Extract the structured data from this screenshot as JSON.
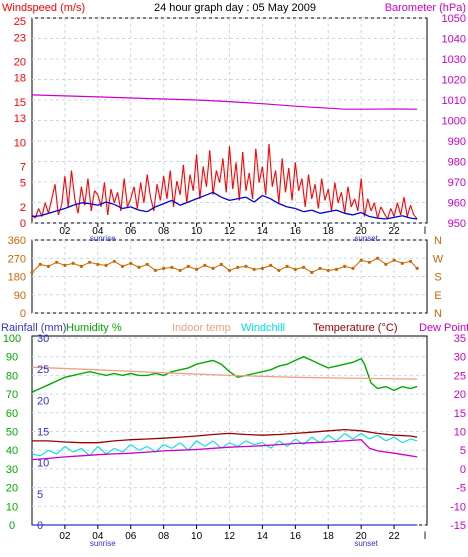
{
  "header": {
    "title": "24 hour graph day : 05 May 2009",
    "left_label": "Windspeed (m/s)",
    "right_label": "Barometer (hPa)"
  },
  "x_axis": {
    "ticks": [
      "02",
      "04",
      "06",
      "08",
      "10",
      "12",
      "14",
      "16",
      "18",
      "20",
      "22"
    ],
    "end_tick": "l",
    "sunrise_label": "sunrise",
    "sunset_label": "sunset",
    "sunrise_hour": 4.3,
    "sunset_hour": 20.3
  },
  "colors": {
    "windspeed": "#ff0000",
    "wind_avg": "#0000cc",
    "barometer": "#cc00cc",
    "wind_dir": "#cc6600",
    "rainfall": "#3333cc",
    "humidity": "#00aa00",
    "indoor_temp": "#f0a080",
    "windchill": "#00e0e0",
    "temperature": "#990000",
    "dewpoint": "#cc00cc",
    "text_dark": "#000000",
    "left_text": "#cc6600",
    "right_text": "#cc00cc",
    "frame": "#000000",
    "grid": "#c8d8ec"
  },
  "chart_data": [
    {
      "type": "line",
      "name": "wind-barometer-chart",
      "title": "24 hour graph day : 05 May 2009",
      "xlim": [
        0,
        24
      ],
      "left_axis": {
        "label": "Windspeed (m/s)",
        "ticks": [
          0,
          2,
          5,
          7,
          10,
          13,
          15,
          18,
          20,
          23,
          25
        ],
        "range": [
          0,
          25.4
        ]
      },
      "right_axis": {
        "label": "Barometer (hPa)",
        "ticks": [
          950,
          960,
          970,
          980,
          990,
          1000,
          1010,
          1020,
          1030,
          1040,
          1050
        ],
        "range": [
          950,
          1050
        ]
      },
      "series": [
        {
          "name": "Windspeed",
          "axis": "left",
          "x": [
            0,
            0.2,
            0.4,
            0.6,
            0.8,
            1,
            1.2,
            1.4,
            1.6,
            1.8,
            2,
            2.2,
            2.4,
            2.6,
            2.8,
            3,
            3.2,
            3.4,
            3.6,
            3.8,
            4,
            4.2,
            4.4,
            4.6,
            4.8,
            5,
            5.2,
            5.4,
            5.6,
            5.8,
            6,
            6.2,
            6.4,
            6.6,
            6.8,
            7,
            7.2,
            7.4,
            7.6,
            7.8,
            8,
            8.2,
            8.4,
            8.6,
            8.8,
            9,
            9.2,
            9.4,
            9.6,
            9.8,
            10,
            10.2,
            10.4,
            10.6,
            10.8,
            11,
            11.2,
            11.4,
            11.6,
            11.8,
            12,
            12.2,
            12.4,
            12.6,
            12.8,
            13,
            13.2,
            13.4,
            13.6,
            13.8,
            14,
            14.2,
            14.4,
            14.6,
            14.8,
            15,
            15.2,
            15.4,
            15.6,
            15.8,
            16,
            16.2,
            16.4,
            16.6,
            16.8,
            17,
            17.2,
            17.4,
            17.6,
            17.8,
            18,
            18.2,
            18.4,
            18.6,
            18.8,
            19,
            19.2,
            19.4,
            19.6,
            19.8,
            20,
            20.2,
            20.4,
            20.6,
            20.8,
            21,
            21.2,
            21.4,
            21.6,
            21.8,
            22,
            22.2,
            22.4,
            22.6,
            22.8,
            23,
            23.2,
            23.4
          ],
          "values": [
            1.0,
            0.6,
            1.8,
            0.8,
            2.5,
            1.2,
            3.0,
            4.8,
            1.0,
            2.2,
            5.8,
            2.0,
            6.5,
            3.0,
            1.2,
            4.5,
            2.2,
            5.5,
            1.5,
            4.0,
            3.5,
            2.0,
            5.0,
            1.0,
            4.2,
            2.5,
            3.8,
            1.5,
            5.5,
            2.0,
            3.0,
            4.5,
            1.8,
            5.0,
            2.5,
            6.0,
            3.2,
            1.5,
            4.8,
            2.8,
            5.8,
            3.0,
            6.5,
            2.0,
            5.2,
            3.5,
            7.2,
            2.5,
            6.0,
            4.0,
            8.5,
            3.0,
            7.0,
            4.5,
            9.0,
            3.5,
            6.5,
            5.0,
            8.0,
            3.8,
            9.5,
            4.2,
            7.5,
            2.8,
            8.8,
            4.0,
            6.2,
            3.0,
            9.2,
            5.0,
            7.0,
            3.5,
            9.8,
            4.5,
            6.5,
            2.5,
            8.0,
            3.8,
            6.8,
            2.8,
            7.5,
            4.0,
            5.5,
            2.0,
            6.0,
            3.0,
            4.8,
            1.8,
            5.5,
            2.8,
            4.2,
            1.5,
            5.0,
            2.5,
            3.8,
            1.2,
            4.5,
            2.0,
            3.0,
            1.5,
            5.5,
            0.8,
            3.0,
            1.5,
            2.5,
            0.6,
            2.0,
            1.2,
            0.5,
            1.8,
            0.8,
            2.5,
            1.0,
            3.2,
            0.8,
            2.2,
            1.0,
            0.5
          ],
          "color_ref": "windspeed"
        },
        {
          "name": "Average wind",
          "axis": "left",
          "x": [
            0,
            0.5,
            1,
            1.5,
            2,
            2.5,
            3,
            3.5,
            4,
            4.5,
            5,
            5.5,
            6,
            6.5,
            7,
            7.5,
            8,
            8.5,
            9,
            9.5,
            10,
            10.5,
            11,
            11.5,
            12,
            12.5,
            13,
            13.5,
            14,
            14.5,
            15,
            15.5,
            16,
            16.5,
            17,
            17.5,
            18,
            18.5,
            19,
            19.5,
            20,
            20.5,
            21,
            21.5,
            22,
            22.5,
            23,
            23.4
          ],
          "values": [
            0.8,
            0.9,
            1.2,
            1.5,
            1.8,
            2.2,
            2.5,
            2.4,
            2.2,
            2.6,
            2.3,
            1.8,
            2.0,
            1.6,
            1.4,
            2.0,
            2.4,
            2.8,
            2.2,
            2.6,
            3.0,
            3.4,
            3.8,
            3.2,
            2.8,
            3.0,
            3.2,
            2.6,
            3.4,
            3.0,
            2.4,
            2.0,
            1.8,
            1.4,
            1.6,
            1.2,
            1.4,
            1.6,
            1.2,
            1.0,
            1.3,
            0.8,
            0.6,
            0.5,
            0.7,
            0.9,
            0.6,
            0.5
          ],
          "color_ref": "wind_avg"
        },
        {
          "name": "Barometer",
          "axis": "right",
          "x": [
            0,
            2,
            4,
            6,
            8,
            10,
            12,
            14,
            16,
            18,
            19,
            20,
            22,
            23.4
          ],
          "values": [
            1012.5,
            1012,
            1011.5,
            1011,
            1010.5,
            1010,
            1009.2,
            1008.2,
            1007,
            1006,
            1005.5,
            1005.5,
            1005.6,
            1005.5
          ],
          "color_ref": "barometer"
        }
      ]
    },
    {
      "type": "scatter",
      "name": "wind-direction-chart",
      "xlim": [
        0,
        24
      ],
      "left_axis": {
        "ticks": [
          0,
          90,
          180,
          270,
          360
        ],
        "range": [
          0,
          360
        ]
      },
      "right_axis": {
        "ticks": [
          "N",
          "W",
          "S",
          "E",
          "N"
        ]
      },
      "series": [
        {
          "name": "Wind direction",
          "x": [
            0,
            0.5,
            1,
            1.5,
            2,
            2.5,
            3,
            3.5,
            4,
            4.5,
            5,
            5.5,
            6,
            6.5,
            7,
            7.5,
            8,
            8.5,
            9,
            9.5,
            10,
            10.5,
            11,
            11.5,
            12,
            12.5,
            13,
            13.5,
            14,
            14.5,
            15,
            15.5,
            16,
            16.5,
            17,
            17.5,
            18,
            18.5,
            19,
            19.5,
            20,
            20.5,
            21,
            21.5,
            22,
            22.5,
            23,
            23.4
          ],
          "values": [
            200,
            240,
            230,
            250,
            235,
            245,
            230,
            250,
            240,
            235,
            255,
            230,
            245,
            225,
            240,
            210,
            220,
            225,
            210,
            230,
            215,
            235,
            220,
            240,
            210,
            225,
            230,
            215,
            220,
            235,
            210,
            230,
            215,
            225,
            200,
            220,
            210,
            215,
            230,
            220,
            260,
            250,
            270,
            240,
            260,
            245,
            255,
            220
          ],
          "color_ref": "wind_dir"
        }
      ]
    },
    {
      "type": "line",
      "name": "temp-humidity-chart",
      "xlim": [
        0,
        24
      ],
      "legend": [
        "Rainfall (mm)",
        "Humidity %",
        "Indoor temp",
        "Windchill",
        "Temperature (°C)",
        "Dew Point"
      ],
      "axes": {
        "rainfall": {
          "ticks": [
            "0",
            "5",
            "10",
            "15",
            "20",
            "25",
            "30"
          ],
          "range": [
            0,
            30
          ]
        },
        "humidity": {
          "ticks": [
            "0",
            "10",
            "20",
            "30",
            "40",
            "50",
            "60",
            "70",
            "80",
            "90",
            "100"
          ],
          "range": [
            0,
            100
          ]
        },
        "temperature": {
          "ticks": [
            "-15",
            "-10",
            "-5",
            "0",
            "5",
            "10",
            "15",
            "20",
            "25",
            "30",
            "35"
          ],
          "range": [
            -15,
            35
          ]
        }
      },
      "series": [
        {
          "name": "Humidity %",
          "axis": "humidity",
          "x": [
            0,
            0.5,
            1,
            1.5,
            2,
            2.5,
            3,
            3.5,
            4,
            4.5,
            5,
            5.5,
            6,
            6.5,
            7,
            7.5,
            8,
            8.5,
            9,
            9.5,
            10,
            10.5,
            11,
            11.5,
            12,
            12.5,
            13,
            13.5,
            14,
            14.5,
            15,
            15.5,
            16,
            16.5,
            17,
            17.5,
            18,
            18.5,
            19,
            19.5,
            20,
            20.2,
            20.6,
            21,
            21.5,
            22,
            22.5,
            23,
            23.4
          ],
          "values": [
            71,
            73,
            75,
            77,
            79,
            80,
            81,
            82,
            81,
            80,
            81,
            80,
            81,
            80,
            80,
            81,
            80,
            82,
            83,
            84,
            86,
            87,
            88,
            86,
            82,
            79,
            80,
            81,
            82,
            83,
            85,
            86,
            88,
            90,
            88,
            86,
            84,
            85,
            86,
            87,
            89,
            86,
            76,
            73,
            74,
            72,
            74,
            73,
            74
          ],
          "color_ref": "humidity"
        },
        {
          "name": "Indoor temp",
          "axis": "temperature",
          "x": [
            0,
            4,
            8,
            12,
            16,
            20,
            23.4
          ],
          "values": [
            27.2,
            26.5,
            25.7,
            25,
            24.5,
            24.2,
            24
          ],
          "color_ref": "indoor_temp"
        },
        {
          "name": "Windchill",
          "axis": "temperature",
          "x": [
            0,
            0.5,
            1,
            1.5,
            2,
            2.5,
            3,
            3.5,
            4,
            4.5,
            5,
            5.5,
            6,
            6.5,
            7,
            7.5,
            8,
            8.5,
            9,
            9.5,
            10,
            10.5,
            11,
            11.5,
            12,
            12.5,
            13,
            13.5,
            14,
            14.5,
            15,
            15.5,
            16,
            16.5,
            17,
            17.5,
            18,
            18.5,
            19,
            19.5,
            20,
            20.5,
            21,
            21.5,
            22,
            22.5,
            23,
            23.4
          ],
          "values": [
            4,
            3.5,
            5,
            4,
            6,
            4.5,
            5.5,
            3.5,
            6,
            4,
            5.5,
            4.5,
            6.5,
            5,
            6,
            4.5,
            6.5,
            5.5,
            7,
            5,
            7.5,
            6,
            7.5,
            5.5,
            7,
            6,
            7.5,
            6.5,
            7,
            5.5,
            7.5,
            6,
            8,
            6.5,
            8.5,
            7,
            9,
            7.5,
            9.5,
            8,
            9.5,
            8,
            9,
            7.5,
            8.5,
            7,
            8,
            7.5
          ],
          "color_ref": "windchill"
        },
        {
          "name": "Temperature (°C)",
          "axis": "temperature",
          "x": [
            0,
            1,
            2,
            3,
            4,
            5,
            6,
            7,
            8,
            9,
            10,
            11,
            12,
            13,
            14,
            15,
            16,
            17,
            18,
            19,
            20,
            21,
            22,
            23,
            23.4
          ],
          "values": [
            7.5,
            7.5,
            7.2,
            7,
            7,
            7.5,
            7.8,
            8,
            8.2,
            8.5,
            8.8,
            9.2,
            9.5,
            9.2,
            9,
            9.2,
            9.5,
            9.8,
            10.2,
            10.5,
            10.2,
            9.5,
            9,
            8.8,
            8.5
          ],
          "color_ref": "temperature"
        },
        {
          "name": "Dew Point",
          "axis": "temperature",
          "x": [
            0,
            1,
            2,
            3,
            4,
            5,
            6,
            7,
            8,
            9,
            10,
            11,
            12,
            13,
            14,
            15,
            16,
            17,
            18,
            19,
            20,
            20.5,
            21,
            22,
            23,
            23.4
          ],
          "values": [
            2.5,
            2.8,
            3.2,
            3.5,
            3.8,
            4,
            4.2,
            4.5,
            4.8,
            5,
            5.2,
            5.5,
            5.8,
            6,
            6.2,
            6.5,
            6.8,
            7,
            7.2,
            7.5,
            7.8,
            5.5,
            4.8,
            4.2,
            3.5,
            3.2
          ],
          "color_ref": "dewpoint"
        },
        {
          "name": "Rainfall (mm)",
          "axis": "rainfall",
          "x": [
            0,
            23.4
          ],
          "values": [
            0,
            0
          ],
          "color_ref": "rainfall"
        }
      ]
    }
  ]
}
